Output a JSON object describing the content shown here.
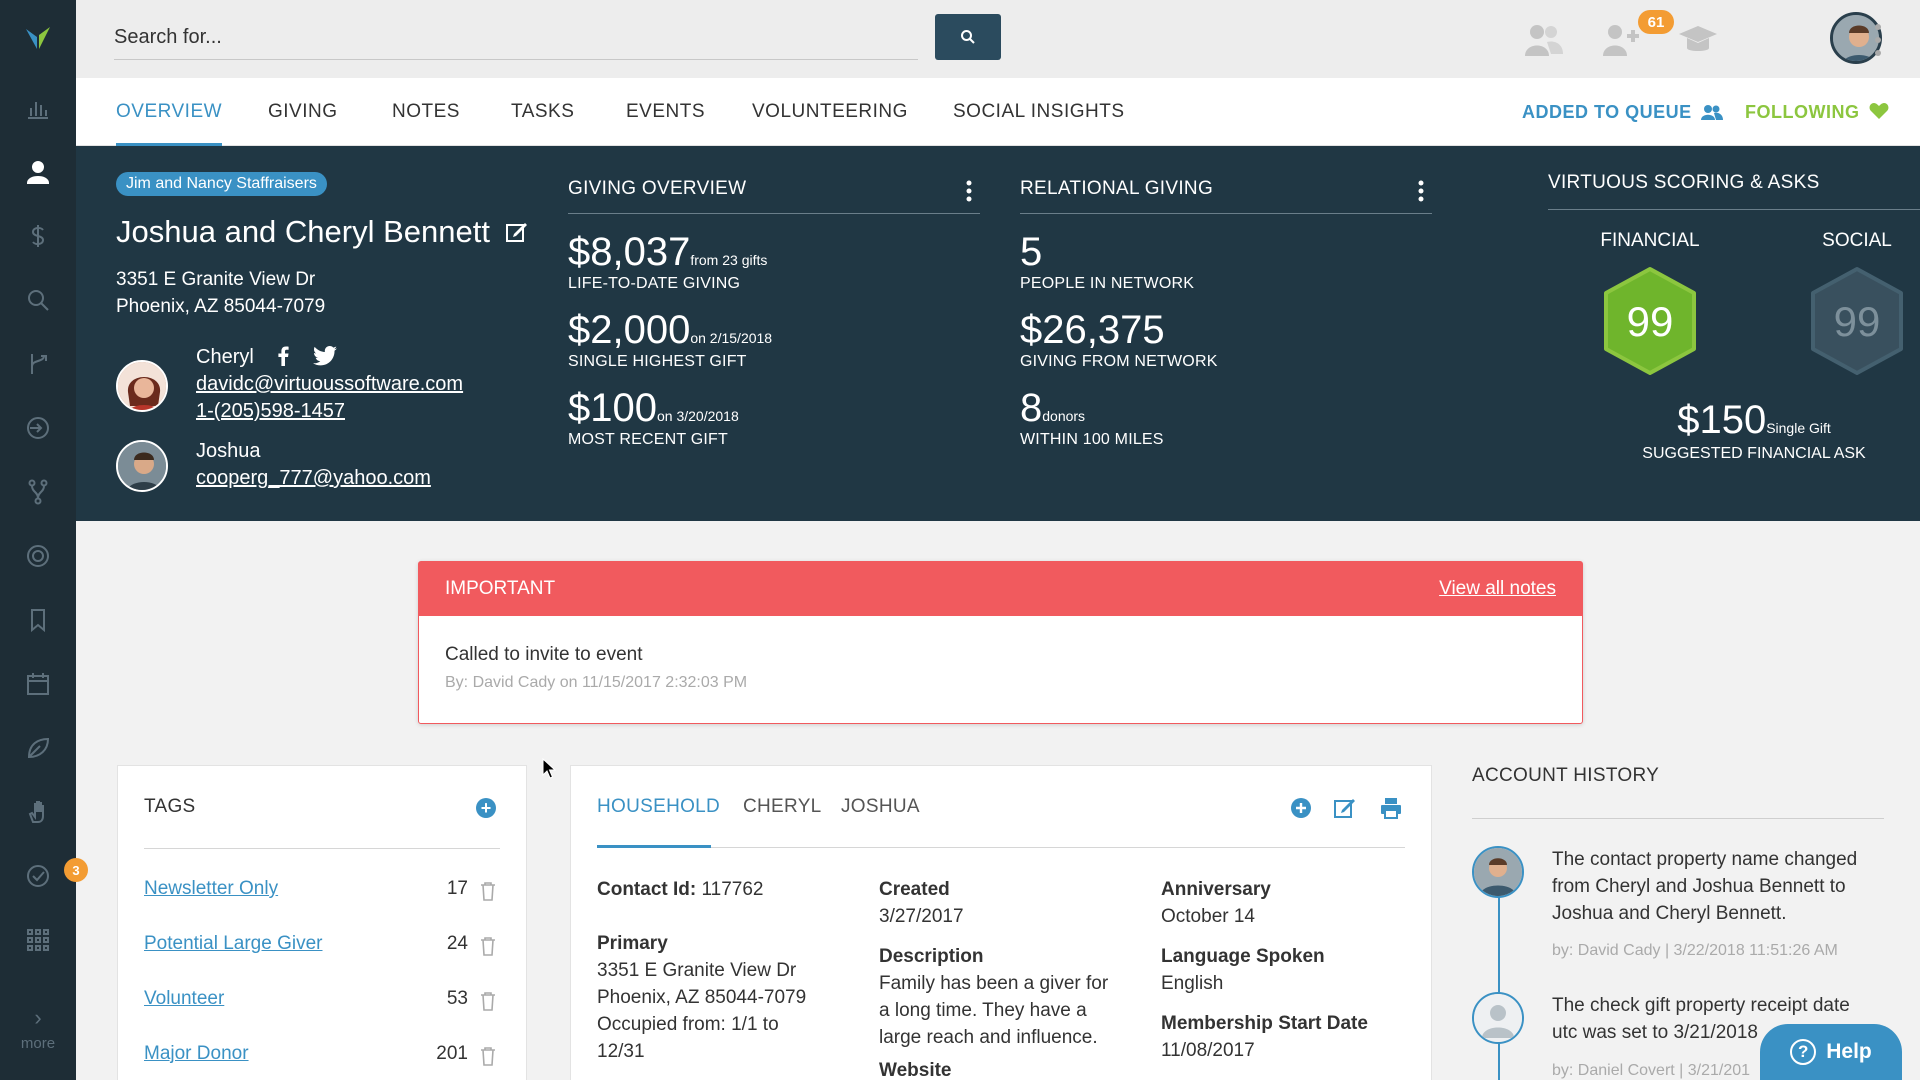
{
  "app": {
    "search": {
      "placeholder": "Search for..."
    },
    "notifications_count": "61",
    "rail_badge": "3",
    "rail_more_label": "more",
    "colors": {
      "accent": "#3a91c4",
      "dark_panel": "#203744",
      "rail": "#1e2d36",
      "important": "#f15a5e",
      "following": "#8cc63f",
      "badge": "#f39c33"
    }
  },
  "nav": {
    "tabs": [
      {
        "label": "OVERVIEW"
      },
      {
        "label": "GIVING"
      },
      {
        "label": "NOTES"
      },
      {
        "label": "TASKS"
      },
      {
        "label": "EVENTS"
      },
      {
        "label": "VOLUNTEERING"
      },
      {
        "label": "SOCIAL INSIGHTS"
      }
    ],
    "queue_label": "ADDED TO QUEUE",
    "following_label": "FOLLOWING"
  },
  "contact": {
    "tag": "Jim and Nancy Staffraisers",
    "name": "Joshua and Cheryl Bennett",
    "address_line1": "3351 E Granite View Dr",
    "address_line2": "Phoenix, AZ 85044-7079",
    "people": [
      {
        "name": "Cheryl",
        "email": "davidc@virtuoussoftware.com",
        "phone": "1-(205)598-1457"
      },
      {
        "name": "Joshua",
        "email": "cooperg_777@yahoo.com"
      }
    ]
  },
  "giving_overview": {
    "title": "GIVING OVERVIEW",
    "stats": [
      {
        "value": "$8,037",
        "suffix": "from 23 gifts",
        "label": "LIFE-TO-DATE GIVING"
      },
      {
        "value": "$2,000",
        "suffix": "on 2/15/2018",
        "label": "SINGLE HIGHEST GIFT"
      },
      {
        "value": "$100",
        "suffix": "on 3/20/2018",
        "label": "MOST RECENT GIFT"
      }
    ]
  },
  "relational_giving": {
    "title": "RELATIONAL GIVING",
    "stats": [
      {
        "value": "5",
        "suffix": "",
        "label": "PEOPLE IN NETWORK"
      },
      {
        "value": "$26,375",
        "suffix": "",
        "label": "GIVING FROM NETWORK"
      },
      {
        "value": "8",
        "suffix": "donors",
        "label": "WITHIN 100 MILES"
      }
    ]
  },
  "scoring": {
    "title": "VIRTUOUS SCORING & ASKS",
    "financial_label": "FINANCIAL",
    "financial_score": "99",
    "social_label": "SOCIAL",
    "social_score": "99",
    "ask_value": "$150",
    "ask_suffix": "Single Gift",
    "ask_label": "SUGGESTED FINANCIAL ASK"
  },
  "important": {
    "title": "IMPORTANT",
    "link": "View all notes",
    "note": "Called to invite to event",
    "by": "By: David Cady on 11/15/2017 2:32:03 PM"
  },
  "tags": {
    "title": "TAGS",
    "items": [
      {
        "name": "Newsletter Only",
        "count": "17"
      },
      {
        "name": "Potential Large Giver",
        "count": "24"
      },
      {
        "name": "Volunteer",
        "count": "53"
      },
      {
        "name": "Major Donor",
        "count": "201"
      }
    ]
  },
  "household": {
    "tabs": [
      {
        "label": "HOUSEHOLD"
      },
      {
        "label": "CHERYL"
      },
      {
        "label": "JOSHUA"
      }
    ],
    "contact_id_label": "Contact Id:",
    "contact_id": "117762",
    "primary_label": "Primary",
    "primary_lines": [
      "3351 E Granite View Dr",
      "Phoenix, AZ 85044-7079",
      "Occupied from: 1/1 to",
      "12/31"
    ],
    "created_label": "Created",
    "created": "3/27/2017",
    "description_label": "Description",
    "description_lines": [
      "Family has been a giver for",
      "a long time. They have a",
      "large reach and influence."
    ],
    "website_label": "Website",
    "anniversary_label": "Anniversary",
    "anniversary": "October 14",
    "language_label": "Language Spoken",
    "language": "English",
    "membership_label": "Membership Start Date",
    "membership": "11/08/2017"
  },
  "account_history": {
    "title": "ACCOUNT HISTORY",
    "entries": [
      {
        "lines": [
          "The contact property name changed",
          "from Cheryl and Joshua Bennett to",
          "Joshua and Cheryl Bennett."
        ],
        "by": "by: David Cady | 3/22/2018 11:51:26 AM"
      },
      {
        "lines": [
          "The check gift property receipt date",
          "utc was set to 3/21/2018"
        ],
        "by": "by: Daniel Covert | 3/21/201"
      }
    ]
  },
  "help": {
    "label": "Help"
  }
}
